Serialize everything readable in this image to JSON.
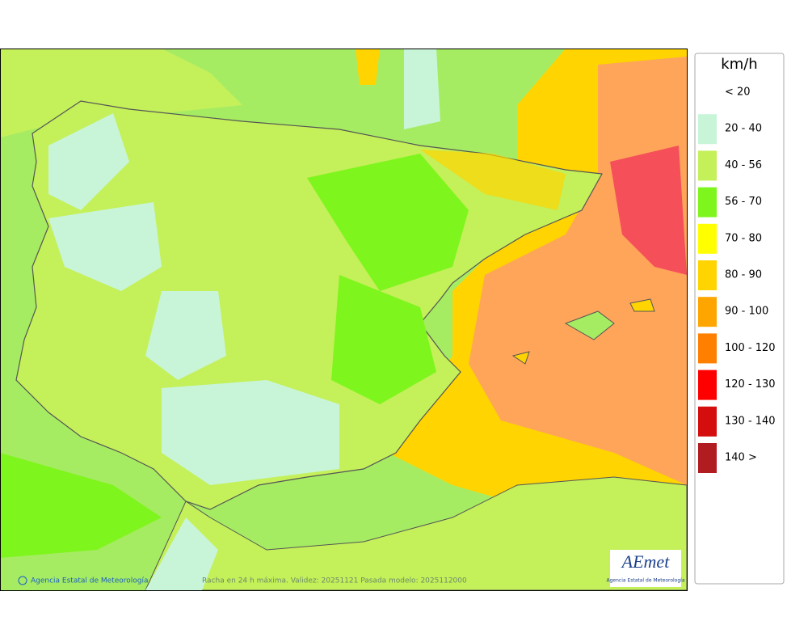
{
  "legend": {
    "title": "km/h",
    "items": [
      {
        "label": "< 20",
        "color": "#ffffff"
      },
      {
        "label": "20 - 40",
        "color": "#c8f5d8"
      },
      {
        "label": "40 - 56",
        "color": "#c4f05a"
      },
      {
        "label": "56 - 70",
        "color": "#7ef51c"
      },
      {
        "label": "70 - 80",
        "color": "#ffff00"
      },
      {
        "label": "80 - 90",
        "color": "#ffd400"
      },
      {
        "label": "90 - 100",
        "color": "#ffa500"
      },
      {
        "label": "100 - 120",
        "color": "#ff8000"
      },
      {
        "label": "120 - 130",
        "color": "#ff0000"
      },
      {
        "label": "130 - 140",
        "color": "#d40d0d"
      },
      {
        "label": "140 >",
        "color": "#b01c20"
      }
    ]
  },
  "footer": {
    "credit": "Agencia Estatal de Meteorología",
    "caption": "Racha en 24 h máxima. Validez: 20251121 Pasada modelo: 2025112000"
  },
  "logo": {
    "name": "AEmet",
    "subtitle": "Agencia Estatal de Meteorología"
  }
}
